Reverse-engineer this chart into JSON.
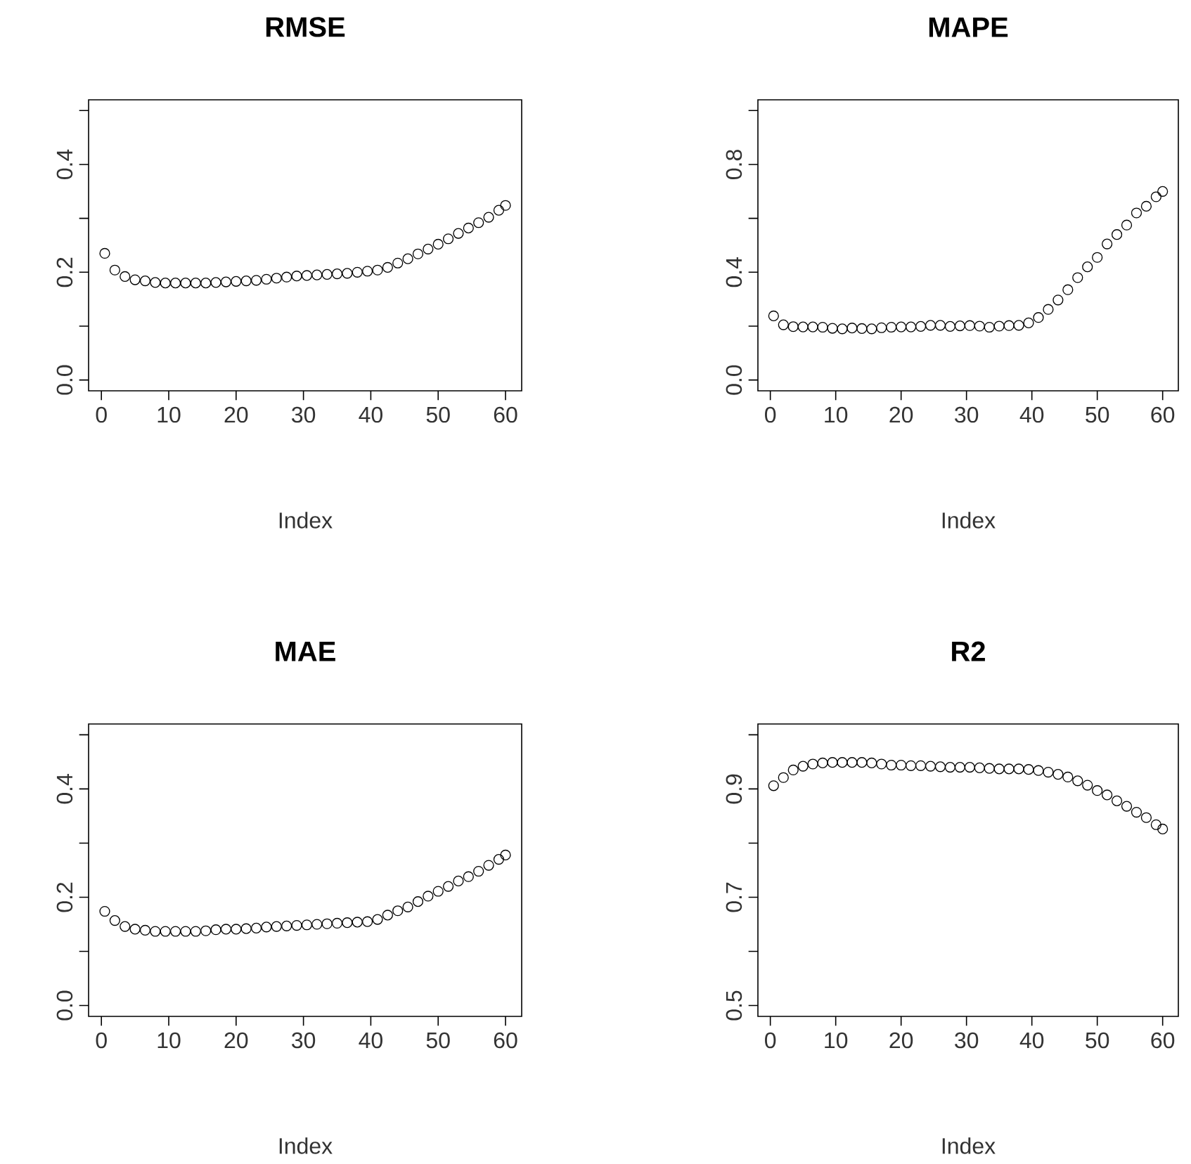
{
  "chart_data": [
    {
      "type": "scatter",
      "title": "RMSE",
      "xlabel": "Index",
      "marker": "circle",
      "color": "#000000",
      "xlim": [
        -1.9,
        62.4
      ],
      "ylim": [
        -0.02,
        0.52
      ],
      "xticks": [
        0,
        10,
        20,
        30,
        40,
        50,
        60
      ],
      "yticks": [
        {
          "value": 0.0,
          "label": "0.0"
        },
        {
          "value": 0.1,
          "label": null
        },
        {
          "value": 0.2,
          "label": "0.2"
        },
        {
          "value": 0.3,
          "label": null
        },
        {
          "value": 0.4,
          "label": "0.4"
        },
        {
          "value": 0.5,
          "label": null
        }
      ],
      "x": [
        0.5,
        2,
        3.5,
        5,
        6.5,
        8,
        9.5,
        11,
        12.5,
        14,
        15.5,
        17,
        18.5,
        20,
        21.5,
        23,
        24.5,
        26,
        27.5,
        29,
        30.5,
        32,
        33.5,
        35,
        36.5,
        38,
        39.5,
        41,
        42.5,
        44,
        45.5,
        47,
        48.5,
        50,
        51.5,
        53,
        54.5,
        56,
        57.5,
        59,
        60
      ],
      "values": [
        0.235,
        0.204,
        0.192,
        0.186,
        0.184,
        0.181,
        0.18,
        0.18,
        0.18,
        0.18,
        0.18,
        0.181,
        0.182,
        0.183,
        0.184,
        0.185,
        0.187,
        0.189,
        0.191,
        0.193,
        0.194,
        0.195,
        0.196,
        0.197,
        0.198,
        0.2,
        0.202,
        0.204,
        0.209,
        0.217,
        0.225,
        0.234,
        0.243,
        0.252,
        0.262,
        0.272,
        0.282,
        0.292,
        0.302,
        0.315,
        0.324
      ]
    },
    {
      "type": "scatter",
      "title": "MAPE",
      "xlabel": "Index",
      "marker": "circle",
      "color": "#000000",
      "xlim": [
        -1.9,
        62.4
      ],
      "ylim": [
        -0.04,
        1.04
      ],
      "xticks": [
        0,
        10,
        20,
        30,
        40,
        50,
        60
      ],
      "yticks": [
        {
          "value": 0.0,
          "label": "0.0"
        },
        {
          "value": 0.2,
          "label": null
        },
        {
          "value": 0.4,
          "label": "0.4"
        },
        {
          "value": 0.6,
          "label": null
        },
        {
          "value": 0.8,
          "label": "0.8"
        },
        {
          "value": 1.0,
          "label": null
        }
      ],
      "x": [
        0.5,
        2,
        3.5,
        5,
        6.5,
        8,
        9.5,
        11,
        12.5,
        14,
        15.5,
        17,
        18.5,
        20,
        21.5,
        23,
        24.5,
        26,
        27.5,
        29,
        30.5,
        32,
        33.5,
        35,
        36.5,
        38,
        39.5,
        41,
        42.5,
        44,
        45.5,
        47,
        48.5,
        50,
        51.5,
        53,
        54.5,
        56,
        57.5,
        59,
        60
      ],
      "values": [
        0.238,
        0.205,
        0.198,
        0.197,
        0.197,
        0.196,
        0.192,
        0.19,
        0.193,
        0.191,
        0.19,
        0.194,
        0.196,
        0.197,
        0.197,
        0.199,
        0.203,
        0.203,
        0.199,
        0.201,
        0.202,
        0.2,
        0.196,
        0.2,
        0.202,
        0.203,
        0.212,
        0.232,
        0.262,
        0.297,
        0.335,
        0.38,
        0.42,
        0.455,
        0.505,
        0.54,
        0.575,
        0.62,
        0.645,
        0.68,
        0.7
      ]
    },
    {
      "type": "scatter",
      "title": "MAE",
      "xlabel": "Index",
      "marker": "circle",
      "color": "#000000",
      "xlim": [
        -1.9,
        62.4
      ],
      "ylim": [
        -0.02,
        0.52
      ],
      "xticks": [
        0,
        10,
        20,
        30,
        40,
        50,
        60
      ],
      "yticks": [
        {
          "value": 0.0,
          "label": "0.0"
        },
        {
          "value": 0.1,
          "label": null
        },
        {
          "value": 0.2,
          "label": "0.2"
        },
        {
          "value": 0.3,
          "label": null
        },
        {
          "value": 0.4,
          "label": "0.4"
        },
        {
          "value": 0.5,
          "label": null
        }
      ],
      "x": [
        0.5,
        2,
        3.5,
        5,
        6.5,
        8,
        9.5,
        11,
        12.5,
        14,
        15.5,
        17,
        18.5,
        20,
        21.5,
        23,
        24.5,
        26,
        27.5,
        29,
        30.5,
        32,
        33.5,
        35,
        36.5,
        38,
        39.5,
        41,
        42.5,
        44,
        45.5,
        47,
        48.5,
        50,
        51.5,
        53,
        54.5,
        56,
        57.5,
        59,
        60
      ],
      "values": [
        0.174,
        0.157,
        0.146,
        0.141,
        0.139,
        0.137,
        0.137,
        0.137,
        0.137,
        0.137,
        0.138,
        0.14,
        0.141,
        0.141,
        0.142,
        0.143,
        0.145,
        0.146,
        0.147,
        0.148,
        0.149,
        0.15,
        0.151,
        0.152,
        0.153,
        0.154,
        0.155,
        0.159,
        0.167,
        0.175,
        0.182,
        0.192,
        0.202,
        0.211,
        0.22,
        0.23,
        0.238,
        0.248,
        0.259,
        0.27,
        0.278
      ]
    },
    {
      "type": "scatter",
      "title": "R2",
      "xlabel": "Index",
      "marker": "circle",
      "color": "#000000",
      "xlim": [
        -1.9,
        62.4
      ],
      "ylim": [
        0.48,
        1.02
      ],
      "xticks": [
        0,
        10,
        20,
        30,
        40,
        50,
        60
      ],
      "yticks": [
        {
          "value": 0.5,
          "label": "0.5"
        },
        {
          "value": 0.6,
          "label": null
        },
        {
          "value": 0.7,
          "label": "0.7"
        },
        {
          "value": 0.8,
          "label": null
        },
        {
          "value": 0.9,
          "label": "0.9"
        },
        {
          "value": 1.0,
          "label": null
        }
      ],
      "x": [
        0.5,
        2,
        3.5,
        5,
        6.5,
        8,
        9.5,
        11,
        12.5,
        14,
        15.5,
        17,
        18.5,
        20,
        21.5,
        23,
        24.5,
        26,
        27.5,
        29,
        30.5,
        32,
        33.5,
        35,
        36.5,
        38,
        39.5,
        41,
        42.5,
        44,
        45.5,
        47,
        48.5,
        50,
        51.5,
        53,
        54.5,
        56,
        57.5,
        59,
        60
      ],
      "values": [
        0.906,
        0.921,
        0.935,
        0.942,
        0.946,
        0.948,
        0.949,
        0.949,
        0.949,
        0.949,
        0.948,
        0.946,
        0.944,
        0.944,
        0.943,
        0.943,
        0.942,
        0.941,
        0.94,
        0.94,
        0.94,
        0.939,
        0.938,
        0.937,
        0.937,
        0.937,
        0.936,
        0.934,
        0.931,
        0.927,
        0.922,
        0.915,
        0.907,
        0.897,
        0.889,
        0.878,
        0.868,
        0.857,
        0.847,
        0.834,
        0.826
      ]
    }
  ]
}
